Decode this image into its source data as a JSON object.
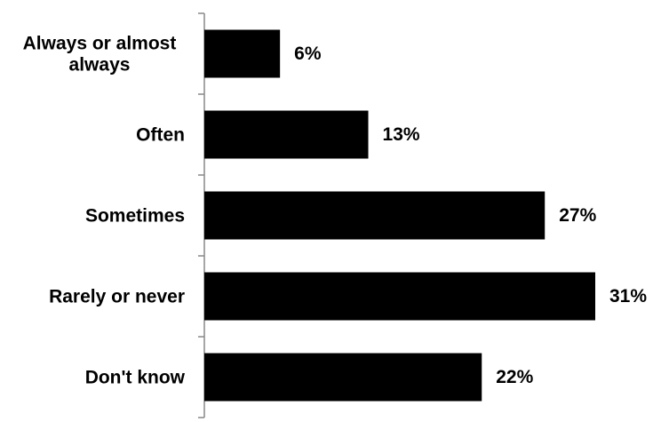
{
  "chart_data": {
    "type": "bar",
    "orientation": "horizontal",
    "categories": [
      [
        "Always or almost",
        "always"
      ],
      [
        "Often"
      ],
      [
        "Sometimes"
      ],
      [
        "Rarely or never"
      ],
      [
        "Don't know"
      ]
    ],
    "values": [
      6,
      13,
      27,
      31,
      22
    ],
    "value_labels": [
      "6%",
      "13%",
      "27%",
      "31%",
      "22%"
    ],
    "xlim": [
      0,
      31
    ],
    "grid": false,
    "legend": "none",
    "bar_color": "#000000",
    "axis_color": "#888888"
  }
}
